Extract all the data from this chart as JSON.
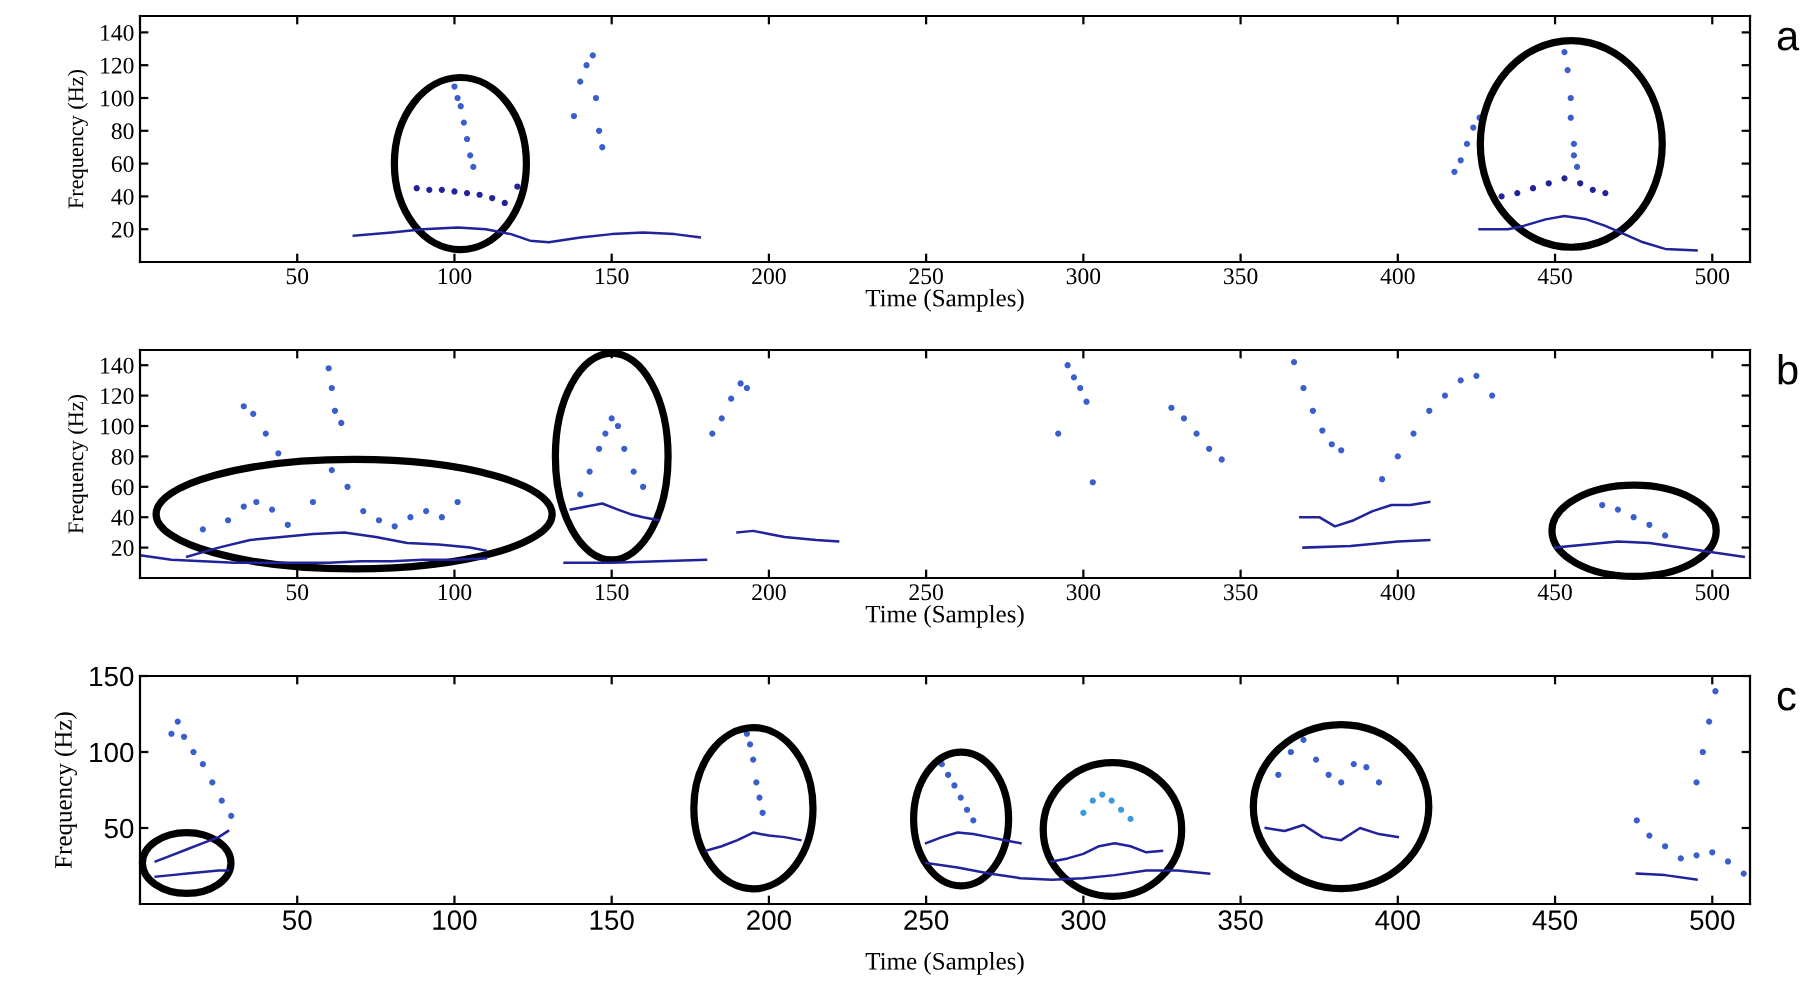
{
  "chart_data": [
    {
      "type": "scatter",
      "xlabel": "Time (Samples)",
      "ylabel": "Frequency (Hz)",
      "xlim": [
        0,
        512
      ],
      "ylim": [
        0,
        150
      ],
      "xticks": [
        50,
        100,
        150,
        200,
        250,
        300,
        350,
        400,
        450,
        500
      ],
      "yticks": [
        20,
        40,
        60,
        80,
        100,
        120,
        140
      ],
      "grid": false,
      "annotations": [
        "a"
      ],
      "series": [
        {
          "type": "line",
          "color": "#22229a",
          "x": [
            68,
            80,
            90,
            101,
            110,
            118,
            124,
            130,
            140,
            150,
            160,
            170,
            178
          ],
          "values": [
            16,
            18,
            20,
            21,
            20,
            17,
            13,
            12,
            15,
            17,
            18,
            17,
            15
          ]
        },
        {
          "marker": "circle",
          "color": "#22229a",
          "x": [
            88,
            92,
            96,
            100,
            104,
            108,
            112,
            116,
            120
          ],
          "values": [
            45,
            44,
            44,
            43,
            42,
            41,
            39,
            36,
            46
          ]
        },
        {
          "marker": "circle",
          "color": "#3a5fcd",
          "x": [
            100,
            101,
            102,
            103,
            104,
            105,
            106
          ],
          "values": [
            107,
            100,
            95,
            85,
            75,
            65,
            58
          ]
        },
        {
          "marker": "circle",
          "color": "#3a5fcd",
          "x": [
            138,
            140,
            142,
            144,
            145,
            146,
            147
          ],
          "values": [
            89,
            110,
            120,
            126,
            100,
            80,
            70
          ]
        },
        {
          "marker": "circle",
          "color": "#3a5fcd",
          "x": [
            418,
            420,
            422,
            424,
            426
          ],
          "values": [
            55,
            62,
            72,
            82,
            88
          ]
        },
        {
          "marker": "circle",
          "color": "#3a5fcd",
          "x": [
            453,
            454,
            455,
            455,
            456,
            456,
            457
          ],
          "values": [
            128,
            117,
            100,
            88,
            72,
            65,
            58
          ]
        },
        {
          "marker": "circle",
          "color": "#22229a",
          "x": [
            433,
            438,
            443,
            448,
            453,
            458,
            462,
            466
          ],
          "values": [
            40,
            42,
            45,
            48,
            51,
            48,
            44,
            42
          ]
        },
        {
          "type": "line",
          "color": "#22229a",
          "x": [
            426,
            435,
            440,
            447,
            453,
            460,
            466,
            472,
            478,
            485,
            495
          ],
          "values": [
            20,
            20,
            22,
            26,
            28,
            26,
            22,
            17,
            12,
            8,
            7
          ]
        }
      ]
    },
    {
      "type": "scatter",
      "xlabel": "Time (Samples)",
      "ylabel": "Frequency (Hz)",
      "xlim": [
        0,
        512
      ],
      "ylim": [
        0,
        150
      ],
      "xticks": [
        50,
        100,
        150,
        200,
        250,
        300,
        350,
        400,
        450,
        500
      ],
      "yticks": [
        20,
        40,
        60,
        80,
        100,
        120,
        140
      ],
      "grid": false,
      "annotations": [
        "b"
      ],
      "series": [
        {
          "type": "line",
          "color": "#22229a",
          "x": [
            0,
            10,
            20,
            30,
            40,
            50,
            60,
            70,
            80,
            90,
            100,
            110
          ],
          "values": [
            15,
            12,
            11,
            10,
            10,
            10,
            10,
            11,
            11,
            12,
            12,
            13
          ]
        },
        {
          "type": "line",
          "color": "#22229a",
          "x": [
            15,
            25,
            35,
            45,
            55,
            65,
            75,
            85,
            95,
            105,
            110
          ],
          "values": [
            14,
            20,
            25,
            27,
            29,
            30,
            27,
            23,
            22,
            20,
            18
          ]
        },
        {
          "marker": "circle",
          "color": "#3a5fcd",
          "x": [
            20,
            28,
            33,
            37,
            42,
            47,
            55,
            61,
            66,
            71,
            76,
            81,
            86,
            91,
            96,
            101
          ],
          "values": [
            32,
            38,
            47,
            50,
            45,
            35,
            50,
            71,
            60,
            44,
            38,
            34,
            40,
            44,
            40,
            50
          ]
        },
        {
          "marker": "circle",
          "color": "#3a5fcd",
          "x": [
            33,
            36,
            40,
            44,
            60,
            61,
            62,
            64
          ],
          "values": [
            113,
            108,
            95,
            82,
            138,
            125,
            110,
            102
          ]
        },
        {
          "marker": "circle",
          "color": "#3a5fcd",
          "x": [
            140,
            143,
            146,
            148,
            150,
            152,
            154,
            157,
            160
          ],
          "values": [
            55,
            70,
            85,
            95,
            105,
            100,
            85,
            70,
            60
          ]
        },
        {
          "type": "line",
          "color": "#22229a",
          "x": [
            137,
            142,
            147,
            152,
            156,
            160,
            165
          ],
          "values": [
            45,
            47,
            49,
            45,
            42,
            40,
            38
          ]
        },
        {
          "type": "line",
          "color": "#22229a",
          "x": [
            135,
            150,
            165,
            180
          ],
          "values": [
            10,
            10,
            11,
            12
          ]
        },
        {
          "marker": "circle",
          "color": "#3a5fcd",
          "x": [
            182,
            185,
            188,
            191,
            193
          ],
          "values": [
            95,
            105,
            118,
            128,
            125
          ]
        },
        {
          "type": "line",
          "color": "#22229a",
          "x": [
            190,
            195,
            200,
            205,
            210,
            215,
            222
          ],
          "values": [
            30,
            31,
            29,
            27,
            26,
            25,
            24
          ]
        },
        {
          "marker": "circle",
          "color": "#3a5fcd",
          "x": [
            292,
            295,
            297,
            299,
            301,
            303
          ],
          "values": [
            95,
            140,
            132,
            125,
            116,
            63
          ]
        },
        {
          "marker": "circle",
          "color": "#3a5fcd",
          "x": [
            328,
            332,
            336,
            340,
            344
          ],
          "values": [
            112,
            105,
            95,
            85,
            78
          ]
        },
        {
          "marker": "circle",
          "color": "#3a5fcd",
          "x": [
            367,
            370,
            373,
            376,
            379,
            382
          ],
          "values": [
            142,
            125,
            110,
            97,
            88,
            84
          ]
        },
        {
          "type": "line",
          "color": "#22229a",
          "x": [
            369,
            375,
            380,
            386,
            392,
            398,
            404,
            410
          ],
          "values": [
            40,
            40,
            34,
            38,
            44,
            48,
            48,
            50
          ]
        },
        {
          "type": "line",
          "color": "#22229a",
          "x": [
            370,
            385,
            400,
            410
          ],
          "values": [
            20,
            21,
            24,
            25
          ]
        },
        {
          "marker": "circle",
          "color": "#3a5fcd",
          "x": [
            395,
            400,
            405,
            410,
            415,
            420,
            425,
            430
          ],
          "values": [
            65,
            80,
            95,
            110,
            120,
            130,
            133,
            120
          ]
        },
        {
          "marker": "circle",
          "color": "#3a5fcd",
          "x": [
            465,
            470,
            475,
            480,
            485
          ],
          "values": [
            48,
            45,
            40,
            35,
            28
          ]
        },
        {
          "type": "line",
          "color": "#22229a",
          "x": [
            450,
            460,
            470,
            480,
            490,
            500,
            510
          ],
          "values": [
            20,
            22,
            24,
            23,
            20,
            17,
            14
          ]
        }
      ]
    },
    {
      "type": "scatter",
      "xlabel": "Time (Samples)",
      "ylabel": "Frequency (Hz)",
      "xlim": [
        0,
        512
      ],
      "ylim": [
        0,
        150
      ],
      "xticks": [
        50,
        100,
        150,
        200,
        250,
        300,
        350,
        400,
        450,
        500
      ],
      "yticks": [
        50,
        100,
        150
      ],
      "grid": false,
      "annotations": [
        "c"
      ],
      "series": [
        {
          "marker": "circle",
          "color": "#3a5fcd",
          "x": [
            10,
            12,
            14,
            17,
            20,
            23,
            26,
            29
          ],
          "values": [
            112,
            120,
            110,
            100,
            92,
            80,
            68,
            58
          ]
        },
        {
          "type": "line",
          "color": "#22229a",
          "x": [
            5,
            10,
            15,
            20,
            25,
            28
          ],
          "values": [
            28,
            32,
            36,
            40,
            44,
            48
          ]
        },
        {
          "type": "line",
          "color": "#22229a",
          "x": [
            5,
            10,
            15,
            20,
            25,
            28
          ],
          "values": [
            18,
            19,
            20,
            21,
            22,
            22
          ]
        },
        {
          "marker": "circle",
          "color": "#3a5fcd",
          "x": [
            193,
            194,
            195,
            196,
            197,
            198
          ],
          "values": [
            112,
            105,
            95,
            80,
            70,
            60
          ]
        },
        {
          "type": "line",
          "color": "#22229a",
          "x": [
            180,
            185,
            190,
            195,
            200,
            205,
            210
          ],
          "values": [
            35,
            38,
            42,
            47,
            45,
            44,
            42
          ]
        },
        {
          "marker": "circle",
          "color": "#3a5fcd",
          "x": [
            255,
            257,
            259,
            261,
            263,
            265
          ],
          "values": [
            92,
            85,
            78,
            70,
            62,
            55
          ]
        },
        {
          "type": "line",
          "color": "#22229a",
          "x": [
            250,
            255,
            260,
            265,
            270,
            275,
            280
          ],
          "values": [
            40,
            44,
            47,
            46,
            44,
            42,
            40
          ]
        },
        {
          "type": "line",
          "color": "#22229a",
          "x": [
            250,
            260,
            270,
            280,
            290,
            300,
            310,
            320,
            330,
            340
          ],
          "values": [
            27,
            24,
            20,
            17,
            16,
            17,
            19,
            22,
            22,
            20
          ]
        },
        {
          "marker": "circle",
          "color": "#3a9bdc",
          "x": [
            300,
            303,
            306,
            309,
            312,
            315
          ],
          "values": [
            60,
            68,
            72,
            68,
            62,
            56
          ]
        },
        {
          "type": "line",
          "color": "#22229a",
          "x": [
            290,
            295,
            300,
            305,
            310,
            315,
            320,
            325
          ],
          "values": [
            28,
            30,
            33,
            38,
            40,
            38,
            34,
            35
          ]
        },
        {
          "marker": "circle",
          "color": "#3a5fcd",
          "x": [
            362,
            366,
            370,
            374,
            378,
            382,
            386,
            390,
            394
          ],
          "values": [
            85,
            100,
            108,
            95,
            85,
            80,
            92,
            90,
            80
          ]
        },
        {
          "type": "line",
          "color": "#22229a",
          "x": [
            358,
            364,
            370,
            376,
            382,
            388,
            394,
            400
          ],
          "values": [
            50,
            48,
            52,
            44,
            42,
            50,
            46,
            44
          ]
        },
        {
          "marker": "circle",
          "color": "#3a5fcd",
          "x": [
            476,
            480,
            485,
            490,
            495,
            500,
            505,
            510
          ],
          "values": [
            55,
            45,
            38,
            30,
            32,
            34,
            28,
            20
          ]
        },
        {
          "marker": "circle",
          "color": "#3a5fcd",
          "x": [
            495,
            497,
            499,
            501
          ],
          "values": [
            80,
            100,
            120,
            140
          ]
        },
        {
          "type": "line",
          "color": "#22229a",
          "x": [
            476,
            485,
            495
          ],
          "values": [
            20,
            19,
            16
          ]
        }
      ]
    }
  ]
}
